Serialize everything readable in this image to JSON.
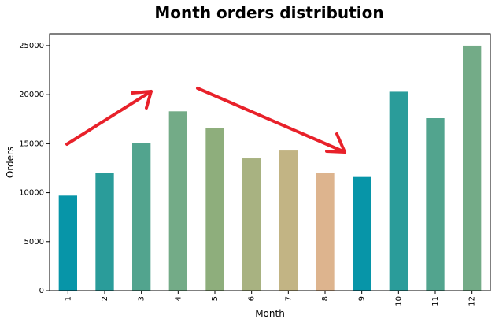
{
  "chart_data": {
    "type": "bar",
    "title": "Month orders distribution",
    "xlabel": "Month",
    "ylabel": "Orders",
    "categories": [
      "1",
      "2",
      "3",
      "4",
      "5",
      "6",
      "7",
      "8",
      "9",
      "10",
      "11",
      "12"
    ],
    "values": [
      9700,
      12000,
      15100,
      18300,
      16600,
      13500,
      14300,
      12000,
      11600,
      20300,
      17600,
      25000
    ],
    "ylim": [
      0,
      26200
    ],
    "yticks": [
      0,
      5000,
      10000,
      15000,
      20000,
      25000
    ],
    "grid": false,
    "legend": "none",
    "colors": [
      "#0795a8",
      "#2a9c9a",
      "#52a48e",
      "#73ab87",
      "#8eae7c",
      "#a8b281",
      "#c2b484",
      "#ddb48e",
      "#0795a8",
      "#2a9c9a",
      "#52a48e",
      "#73ab87"
    ],
    "annotation_color": "#e8212a"
  }
}
